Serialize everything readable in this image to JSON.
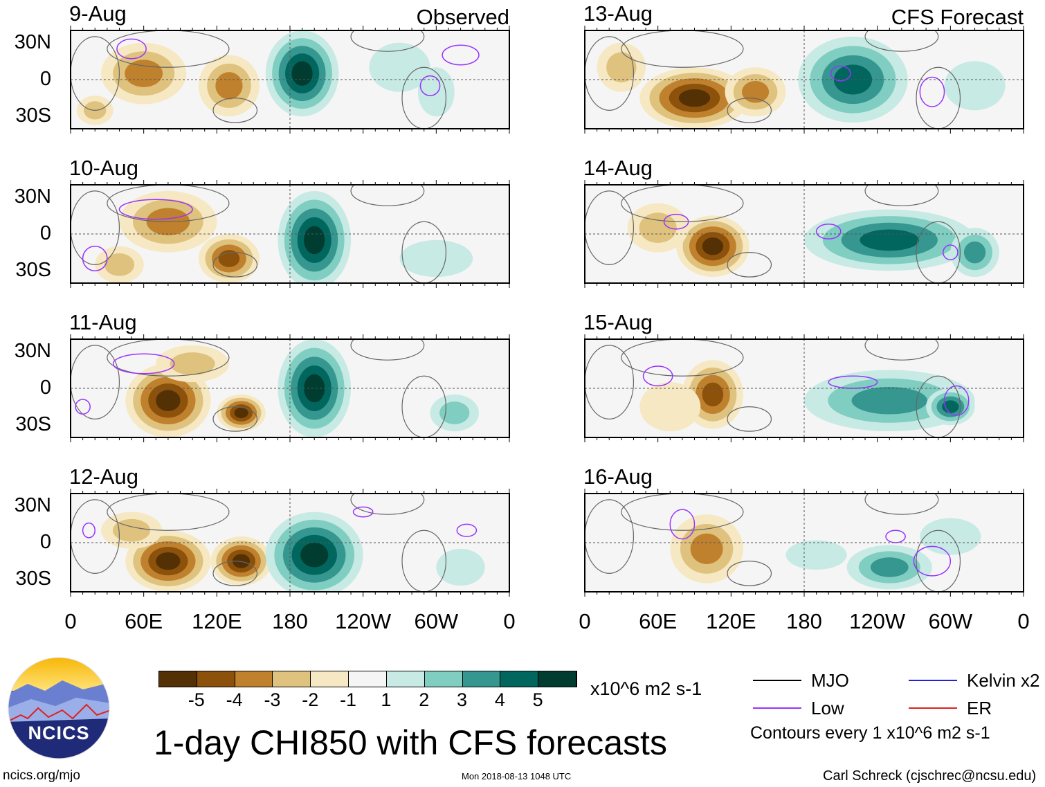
{
  "headers": {
    "observed": "Observed",
    "forecast": "CFS Forecast"
  },
  "lat_labels": [
    "30N",
    "0",
    "30S"
  ],
  "lon_labels": [
    "0",
    "60E",
    "120E",
    "180",
    "120W",
    "60W",
    "0"
  ],
  "colorbar": {
    "colors": [
      "#543005",
      "#8c510a",
      "#bf812d",
      "#dfc27d",
      "#f6e8c3",
      "#f5f5f5",
      "#c7eae5",
      "#80cdc1",
      "#35978f",
      "#01665e",
      "#003c30"
    ],
    "labels": [
      "-5",
      "-4",
      "-3",
      "-2",
      "-1",
      "1",
      "2",
      "3",
      "4",
      "5"
    ],
    "units": "x10^6 m2 s-1"
  },
  "title": "1-day CHI850 with CFS forecasts",
  "legend": [
    {
      "label": "MJO",
      "color": "#000000"
    },
    {
      "label": "Kelvin x2",
      "color": "#2222dd"
    },
    {
      "label": "Low",
      "color": "#9933ff"
    },
    {
      "label": "ER",
      "color": "#dd2222"
    }
  ],
  "contour_note": "Contours every 1 x10^6 m2 s-1",
  "logo_text": "NCICS",
  "footer": {
    "site": "ncics.org/mjo",
    "timestamp": "Mon 2018-08-13 1048 UTC",
    "author": "Carl Schreck (cjschrec@ncsu.edu)"
  },
  "panels": [
    {
      "date": "9-Aug",
      "col": 0,
      "row": 0,
      "features": [
        [
          60,
          5,
          35,
          25,
          -3
        ],
        [
          130,
          -5,
          25,
          25,
          -3
        ],
        [
          20,
          -25,
          15,
          12,
          -2
        ],
        [
          190,
          5,
          30,
          35,
          5
        ],
        [
          270,
          10,
          25,
          20,
          1
        ],
        [
          300,
          -10,
          15,
          20,
          1
        ]
      ],
      "contours": [
        [
          50,
          25,
          12,
          8
        ],
        [
          295,
          -5,
          8,
          8
        ],
        [
          320,
          20,
          15,
          8
        ]
      ]
    },
    {
      "date": "10-Aug",
      "col": 0,
      "row": 1,
      "features": [
        [
          80,
          10,
          40,
          25,
          -3
        ],
        [
          130,
          -20,
          25,
          20,
          -4
        ],
        [
          40,
          -25,
          20,
          15,
          -2
        ],
        [
          200,
          -5,
          30,
          40,
          5
        ],
        [
          300,
          -20,
          30,
          15,
          1
        ]
      ],
      "contours": [
        [
          20,
          -20,
          10,
          10
        ],
        [
          70,
          20,
          30,
          8
        ]
      ]
    },
    {
      "date": "11-Aug",
      "col": 0,
      "row": 2,
      "features": [
        [
          80,
          -10,
          35,
          30,
          -5
        ],
        [
          140,
          -20,
          20,
          15,
          -5
        ],
        [
          100,
          20,
          30,
          15,
          -2
        ],
        [
          200,
          0,
          30,
          40,
          5
        ],
        [
          315,
          -20,
          20,
          15,
          2
        ]
      ],
      "contours": [
        [
          10,
          -15,
          6,
          6
        ],
        [
          60,
          20,
          25,
          8
        ]
      ]
    },
    {
      "date": "12-Aug",
      "col": 0,
      "row": 3,
      "features": [
        [
          80,
          -15,
          35,
          25,
          -5
        ],
        [
          140,
          -15,
          25,
          20,
          -5
        ],
        [
          50,
          10,
          25,
          15,
          -2
        ],
        [
          200,
          -10,
          40,
          35,
          5
        ],
        [
          320,
          -20,
          20,
          15,
          1
        ]
      ],
      "contours": [
        [
          15,
          10,
          5,
          6
        ],
        [
          240,
          25,
          8,
          4
        ],
        [
          325,
          10,
          8,
          5
        ]
      ]
    },
    {
      "date": "13-Aug",
      "col": 1,
      "row": 0,
      "features": [
        [
          90,
          -15,
          45,
          25,
          -5
        ],
        [
          140,
          -10,
          25,
          20,
          -3
        ],
        [
          30,
          10,
          20,
          20,
          -2
        ],
        [
          220,
          0,
          45,
          35,
          4
        ],
        [
          320,
          -5,
          25,
          20,
          1
        ]
      ],
      "contours": [
        [
          210,
          5,
          8,
          6
        ],
        [
          285,
          -10,
          10,
          12
        ]
      ]
    },
    {
      "date": "14-Aug",
      "col": 1,
      "row": 1,
      "features": [
        [
          105,
          -10,
          30,
          25,
          -5
        ],
        [
          60,
          5,
          25,
          20,
          -2
        ],
        [
          250,
          -5,
          70,
          25,
          4
        ],
        [
          320,
          -15,
          20,
          20,
          3
        ]
      ],
      "contours": [
        [
          200,
          2,
          10,
          6
        ],
        [
          300,
          -15,
          6,
          6
        ],
        [
          75,
          10,
          10,
          6
        ]
      ]
    },
    {
      "date": "15-Aug",
      "col": 1,
      "row": 2,
      "features": [
        [
          105,
          -5,
          25,
          28,
          -4
        ],
        [
          70,
          -15,
          25,
          20,
          -1
        ],
        [
          250,
          -10,
          70,
          25,
          3
        ],
        [
          300,
          -15,
          20,
          15,
          4
        ]
      ],
      "contours": [
        [
          60,
          10,
          12,
          8
        ],
        [
          220,
          5,
          20,
          5
        ],
        [
          305,
          -10,
          10,
          12
        ]
      ]
    },
    {
      "date": "16-Aug",
      "col": 1,
      "row": 3,
      "features": [
        [
          100,
          -5,
          30,
          28,
          -3
        ],
        [
          250,
          -20,
          35,
          18,
          3
        ],
        [
          190,
          -10,
          25,
          12,
          1
        ],
        [
          300,
          5,
          25,
          15,
          1
        ]
      ],
      "contours": [
        [
          80,
          15,
          10,
          12
        ],
        [
          255,
          5,
          8,
          5
        ],
        [
          285,
          -15,
          15,
          12
        ]
      ]
    }
  ]
}
